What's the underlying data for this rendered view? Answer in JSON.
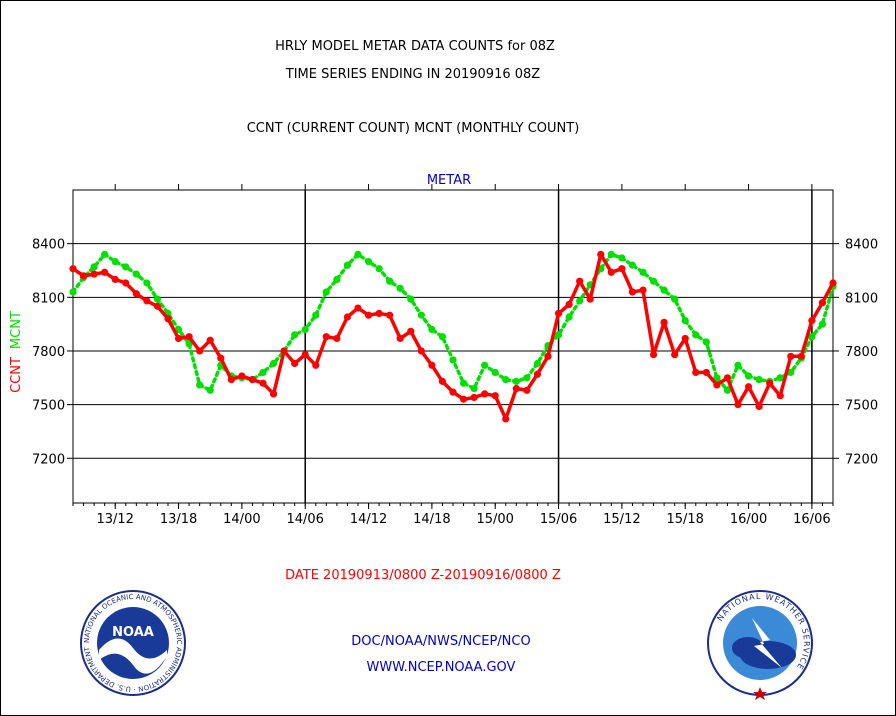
{
  "header": {
    "line1": "HRLY MODEL METAR DATA COUNTS for 08Z",
    "line2": "TIME SERIES ENDING IN 20190916 08Z",
    "line3": "CCNT (CURRENT COUNT) MCNT (MONTHLY COUNT)"
  },
  "footer": {
    "date_range": "DATE 20190913/0800 Z-20190916/0800 Z",
    "org": "DOC/NOAA/NWS/NCEP/NCO",
    "url": "WWW.NCEP.NOAA.GOV"
  },
  "logos": {
    "left_name": "noaa-logo",
    "left_text": "NOAA",
    "left_ring_text": "NATIONAL OCEANIC AND ATMOSPHERIC ADMINISTRATION · U.S. DEPARTMENT OF COMMERCE ·",
    "right_name": "nws-logo",
    "right_ring_text": "NATIONAL WEATHER SERVICE"
  },
  "colors": {
    "ccnt": "#ff0000",
    "mcnt": "#00e000",
    "title": "#000000",
    "panel_title": "#0000cc",
    "footer_link": "#0000cc"
  },
  "chart_data": {
    "type": "line",
    "title": "METAR",
    "ylabel_parts": [
      {
        "text": "CCNT",
        "color": "#ff0000"
      },
      {
        "text": "MCNT",
        "color": "#00e000"
      }
    ],
    "x_unit": "hour index (0 = 13/08Z)",
    "xlim": [
      0,
      72
    ],
    "ylim": [
      6950,
      8700
    ],
    "yticks": [
      7200,
      7500,
      7800,
      8100,
      8400
    ],
    "xticks": [
      {
        "x": 4,
        "label": "13/12"
      },
      {
        "x": 10,
        "label": "13/18"
      },
      {
        "x": 16,
        "label": "14/00"
      },
      {
        "x": 22,
        "label": "14/06"
      },
      {
        "x": 28,
        "label": "14/12"
      },
      {
        "x": 34,
        "label": "14/18"
      },
      {
        "x": 40,
        "label": "15/00"
      },
      {
        "x": 46,
        "label": "15/06"
      },
      {
        "x": 52,
        "label": "15/12"
      },
      {
        "x": 58,
        "label": "15/18"
      },
      {
        "x": 64,
        "label": "16/00"
      },
      {
        "x": 70,
        "label": "16/06"
      }
    ],
    "day_lines": [
      22,
      46,
      70
    ],
    "grid": true,
    "series": [
      {
        "name": "CCNT",
        "color": "#ff0000",
        "style": "solid",
        "values": [
          8260,
          8220,
          8230,
          8240,
          8200,
          8180,
          8120,
          8080,
          8050,
          7980,
          7870,
          7880,
          7800,
          7860,
          7760,
          7640,
          7660,
          7640,
          7620,
          7560,
          7800,
          7730,
          7780,
          7720,
          7880,
          7870,
          7990,
          8040,
          8000,
          8010,
          8000,
          7870,
          7910,
          7800,
          7720,
          7630,
          7570,
          7530,
          7540,
          7560,
          7550,
          7420,
          7590,
          7580,
          7670,
          7770,
          8010,
          8060,
          8190,
          8090,
          8340,
          8240,
          8260,
          8130,
          8140,
          7780,
          7960,
          7780,
          7870,
          7680,
          7680,
          7610,
          7650,
          7500,
          7600,
          7490,
          7620,
          7550,
          7770,
          7770,
          7970,
          8070,
          8180
        ]
      },
      {
        "name": "MCNT",
        "color": "#00e000",
        "style": "dotted",
        "values": [
          8130,
          8210,
          8270,
          8340,
          8300,
          8270,
          8230,
          8180,
          8090,
          8010,
          7920,
          7840,
          7610,
          7580,
          7720,
          7660,
          7650,
          7640,
          7680,
          7730,
          7800,
          7890,
          7920,
          8000,
          8130,
          8200,
          8280,
          8340,
          8300,
          8260,
          8190,
          8150,
          8090,
          8000,
          7920,
          7880,
          7750,
          7620,
          7590,
          7720,
          7680,
          7640,
          7630,
          7650,
          7730,
          7830,
          7890,
          7990,
          8080,
          8170,
          8260,
          8340,
          8320,
          8280,
          8240,
          8190,
          8140,
          8090,
          7970,
          7890,
          7850,
          7650,
          7580,
          7720,
          7660,
          7640,
          7630,
          7650,
          7680,
          7760,
          7880,
          7950,
          8160
        ]
      }
    ]
  }
}
